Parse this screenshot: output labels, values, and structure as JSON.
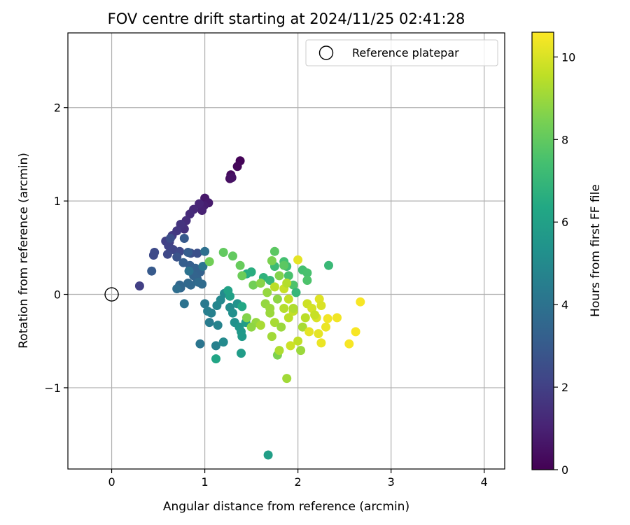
{
  "chart_data": {
    "type": "scatter",
    "title": "FOV centre drift starting at 2024/11/25 02:41:28",
    "xlabel": "Angular distance from reference (arcmin)",
    "ylabel": "Rotation from reference (arcmin)",
    "xlim": [
      -0.47,
      4.22
    ],
    "ylim": [
      -1.87,
      2.8
    ],
    "xticks": [
      0,
      1,
      2,
      3,
      4
    ],
    "xtick_labels": [
      "0",
      "1",
      "2",
      "3",
      "4"
    ],
    "yticks": [
      -1,
      0,
      1,
      2
    ],
    "ytick_labels": [
      "−1",
      "0",
      "1",
      "2"
    ],
    "grid": true,
    "legend": {
      "placement": "top-right",
      "entries": [
        "Reference platepar"
      ]
    },
    "reference_point": {
      "name": "Reference platepar",
      "x": 0,
      "y": 0
    },
    "colorbar": {
      "label": "Hours from first FF file",
      "colormap": "viridis",
      "range": [
        0,
        10.6
      ],
      "ticks": [
        0,
        2,
        4,
        6,
        8,
        10
      ],
      "tick_labels": [
        "0",
        "2",
        "4",
        "6",
        "8",
        "10"
      ]
    },
    "points": [
      {
        "x": 1.38,
        "y": 1.43,
        "t": 0.1
      },
      {
        "x": 1.35,
        "y": 1.37,
        "t": 0.2
      },
      {
        "x": 1.28,
        "y": 1.28,
        "t": 0.3
      },
      {
        "x": 1.27,
        "y": 1.24,
        "t": 0.4
      },
      {
        "x": 1.29,
        "y": 1.25,
        "t": 0.5
      },
      {
        "x": 1.0,
        "y": 1.03,
        "t": 0.7
      },
      {
        "x": 1.04,
        "y": 0.98,
        "t": 0.8
      },
      {
        "x": 0.99,
        "y": 0.95,
        "t": 0.9
      },
      {
        "x": 0.97,
        "y": 0.9,
        "t": 1.0
      },
      {
        "x": 0.94,
        "y": 0.97,
        "t": 1.1
      },
      {
        "x": 0.88,
        "y": 0.91,
        "t": 1.2
      },
      {
        "x": 0.84,
        "y": 0.86,
        "t": 1.3
      },
      {
        "x": 0.8,
        "y": 0.79,
        "t": 1.4
      },
      {
        "x": 0.78,
        "y": 0.7,
        "t": 1.5
      },
      {
        "x": 0.74,
        "y": 0.75,
        "t": 1.6
      },
      {
        "x": 0.7,
        "y": 0.68,
        "t": 1.7
      },
      {
        "x": 0.65,
        "y": 0.63,
        "t": 1.8
      },
      {
        "x": 0.62,
        "y": 0.56,
        "t": 1.9
      },
      {
        "x": 0.58,
        "y": 0.57,
        "t": 2.0
      },
      {
        "x": 0.61,
        "y": 0.52,
        "t": 2.1
      },
      {
        "x": 0.66,
        "y": 0.48,
        "t": 2.2
      },
      {
        "x": 0.6,
        "y": 0.43,
        "t": 2.3
      },
      {
        "x": 0.73,
        "y": 0.46,
        "t": 2.3
      },
      {
        "x": 0.46,
        "y": 0.45,
        "t": 2.4
      },
      {
        "x": 0.45,
        "y": 0.42,
        "t": 2.4
      },
      {
        "x": 0.63,
        "y": 0.6,
        "t": 2.5
      },
      {
        "x": 0.85,
        "y": 0.44,
        "t": 2.6
      },
      {
        "x": 0.92,
        "y": 0.44,
        "t": 2.6
      },
      {
        "x": 0.7,
        "y": 0.4,
        "t": 2.7
      },
      {
        "x": 0.3,
        "y": 0.09,
        "t": 2.0
      },
      {
        "x": 0.43,
        "y": 0.25,
        "t": 3.0
      },
      {
        "x": 0.78,
        "y": 0.6,
        "t": 3.0
      },
      {
        "x": 0.82,
        "y": 0.45,
        "t": 3.1
      },
      {
        "x": 0.77,
        "y": 0.34,
        "t": 3.2
      },
      {
        "x": 0.84,
        "y": 0.31,
        "t": 3.2
      },
      {
        "x": 0.9,
        "y": 0.28,
        "t": 3.3
      },
      {
        "x": 0.95,
        "y": 0.24,
        "t": 3.3
      },
      {
        "x": 0.92,
        "y": 0.16,
        "t": 3.4
      },
      {
        "x": 0.88,
        "y": 0.2,
        "t": 3.4
      },
      {
        "x": 0.73,
        "y": 0.1,
        "t": 3.5
      },
      {
        "x": 0.74,
        "y": 0.07,
        "t": 3.5
      },
      {
        "x": 0.82,
        "y": 0.12,
        "t": 3.6
      },
      {
        "x": 0.85,
        "y": 0.1,
        "t": 3.6
      },
      {
        "x": 0.93,
        "y": 0.13,
        "t": 3.7
      },
      {
        "x": 0.97,
        "y": 0.11,
        "t": 3.7
      },
      {
        "x": 0.7,
        "y": 0.06,
        "t": 3.8
      },
      {
        "x": 0.78,
        "y": -0.1,
        "t": 4.0
      },
      {
        "x": 1.0,
        "y": 0.46,
        "t": 3.9
      },
      {
        "x": 0.83,
        "y": 0.25,
        "t": 4.0
      },
      {
        "x": 0.98,
        "y": 0.3,
        "t": 4.1
      },
      {
        "x": 0.95,
        "y": -0.53,
        "t": 4.1
      },
      {
        "x": 1.0,
        "y": -0.1,
        "t": 4.3
      },
      {
        "x": 1.05,
        "y": -0.3,
        "t": 4.4
      },
      {
        "x": 1.03,
        "y": -0.18,
        "t": 4.5
      },
      {
        "x": 1.07,
        "y": -0.2,
        "t": 4.6
      },
      {
        "x": 1.12,
        "y": -0.55,
        "t": 4.6
      },
      {
        "x": 1.14,
        "y": -0.33,
        "t": 4.7
      },
      {
        "x": 1.13,
        "y": -0.12,
        "t": 4.8
      },
      {
        "x": 1.17,
        "y": -0.06,
        "t": 4.9
      },
      {
        "x": 1.21,
        "y": 0.01,
        "t": 5.0
      },
      {
        "x": 1.2,
        "y": -0.51,
        "t": 5.0
      },
      {
        "x": 1.27,
        "y": -0.14,
        "t": 5.1
      },
      {
        "x": 1.3,
        "y": -0.2,
        "t": 5.2
      },
      {
        "x": 1.32,
        "y": -0.3,
        "t": 5.3
      },
      {
        "x": 1.35,
        "y": -0.1,
        "t": 5.4
      },
      {
        "x": 1.37,
        "y": -0.35,
        "t": 5.5
      },
      {
        "x": 1.39,
        "y": -0.4,
        "t": 5.6
      },
      {
        "x": 1.4,
        "y": -0.45,
        "t": 5.7
      },
      {
        "x": 1.44,
        "y": -0.3,
        "t": 5.8
      },
      {
        "x": 1.39,
        "y": -0.63,
        "t": 5.8
      },
      {
        "x": 1.27,
        "y": -0.02,
        "t": 6.0
      },
      {
        "x": 1.25,
        "y": 0.04,
        "t": 6.1
      },
      {
        "x": 1.12,
        "y": -0.69,
        "t": 6.2
      },
      {
        "x": 1.4,
        "y": -0.13,
        "t": 6.3
      },
      {
        "x": 1.45,
        "y": 0.22,
        "t": 6.5
      },
      {
        "x": 1.5,
        "y": 0.24,
        "t": 6.6
      },
      {
        "x": 1.68,
        "y": -1.72,
        "t": 5.9
      },
      {
        "x": 1.63,
        "y": 0.18,
        "t": 6.8
      },
      {
        "x": 1.7,
        "y": 0.15,
        "t": 7.0
      },
      {
        "x": 1.75,
        "y": 0.3,
        "t": 7.2
      },
      {
        "x": 1.88,
        "y": 0.3,
        "t": 7.3
      },
      {
        "x": 1.85,
        "y": 0.35,
        "t": 7.4
      },
      {
        "x": 1.9,
        "y": 0.2,
        "t": 7.5
      },
      {
        "x": 1.95,
        "y": 0.1,
        "t": 7.6
      },
      {
        "x": 2.05,
        "y": 0.26,
        "t": 7.4
      },
      {
        "x": 2.1,
        "y": 0.23,
        "t": 7.5
      },
      {
        "x": 2.1,
        "y": 0.15,
        "t": 7.6
      },
      {
        "x": 2.33,
        "y": 0.31,
        "t": 7.1
      },
      {
        "x": 1.98,
        "y": 0.02,
        "t": 7.0
      },
      {
        "x": 1.75,
        "y": 0.46,
        "t": 7.9
      },
      {
        "x": 1.85,
        "y": 0.31,
        "t": 7.9
      },
      {
        "x": 1.2,
        "y": 0.45,
        "t": 8.0
      },
      {
        "x": 1.3,
        "y": 0.41,
        "t": 8.0
      },
      {
        "x": 1.38,
        "y": 0.31,
        "t": 8.1
      },
      {
        "x": 1.4,
        "y": 0.2,
        "t": 8.2
      },
      {
        "x": 1.52,
        "y": 0.1,
        "t": 8.3
      },
      {
        "x": 1.05,
        "y": 0.35,
        "t": 8.3
      },
      {
        "x": 1.72,
        "y": 0.36,
        "t": 8.5
      },
      {
        "x": 1.8,
        "y": 0.2,
        "t": 8.6
      },
      {
        "x": 1.78,
        "y": -0.65,
        "t": 8.5
      },
      {
        "x": 1.6,
        "y": 0.12,
        "t": 8.7
      },
      {
        "x": 1.65,
        "y": -0.1,
        "t": 8.9
      },
      {
        "x": 1.7,
        "y": -0.2,
        "t": 9.0
      },
      {
        "x": 1.72,
        "y": -0.45,
        "t": 9.1
      },
      {
        "x": 1.75,
        "y": -0.3,
        "t": 9.2
      },
      {
        "x": 1.8,
        "y": -0.6,
        "t": 9.3
      },
      {
        "x": 1.88,
        "y": -0.9,
        "t": 9.1
      },
      {
        "x": 1.85,
        "y": -0.15,
        "t": 9.4
      },
      {
        "x": 1.9,
        "y": -0.25,
        "t": 9.5
      },
      {
        "x": 1.95,
        "y": -0.18,
        "t": 9.6
      },
      {
        "x": 2.0,
        "y": -0.5,
        "t": 9.6
      },
      {
        "x": 2.05,
        "y": -0.35,
        "t": 9.2
      },
      {
        "x": 2.03,
        "y": -0.6,
        "t": 9.0
      },
      {
        "x": 1.92,
        "y": -0.55,
        "t": 9.8
      },
      {
        "x": 2.1,
        "y": -0.1,
        "t": 9.8
      },
      {
        "x": 2.15,
        "y": -0.15,
        "t": 9.9
      },
      {
        "x": 2.2,
        "y": -0.25,
        "t": 10.0
      },
      {
        "x": 2.23,
        "y": -0.05,
        "t": 10.1
      },
      {
        "x": 2.22,
        "y": -0.42,
        "t": 10.2
      },
      {
        "x": 2.25,
        "y": -0.52,
        "t": 10.3
      },
      {
        "x": 2.3,
        "y": -0.35,
        "t": 10.3
      },
      {
        "x": 2.32,
        "y": -0.26,
        "t": 10.4
      },
      {
        "x": 2.42,
        "y": -0.25,
        "t": 10.4
      },
      {
        "x": 2.55,
        "y": -0.53,
        "t": 10.5
      },
      {
        "x": 2.62,
        "y": -0.4,
        "t": 10.5
      },
      {
        "x": 2.67,
        "y": -0.08,
        "t": 10.5
      },
      {
        "x": 2.12,
        "y": -0.4,
        "t": 10.2
      },
      {
        "x": 2.0,
        "y": 0.37,
        "t": 10.2
      },
      {
        "x": 1.85,
        "y": 0.06,
        "t": 9.7
      },
      {
        "x": 1.9,
        "y": -0.05,
        "t": 9.6
      },
      {
        "x": 1.88,
        "y": 0.12,
        "t": 9.4
      },
      {
        "x": 1.75,
        "y": 0.08,
        "t": 9.5
      },
      {
        "x": 1.95,
        "y": -0.15,
        "t": 9.3
      },
      {
        "x": 1.7,
        "y": -0.15,
        "t": 9.0
      },
      {
        "x": 1.55,
        "y": -0.3,
        "t": 8.9
      },
      {
        "x": 1.6,
        "y": -0.33,
        "t": 9.2
      },
      {
        "x": 1.5,
        "y": -0.35,
        "t": 8.8
      },
      {
        "x": 1.45,
        "y": -0.25,
        "t": 8.6
      },
      {
        "x": 1.78,
        "y": -0.05,
        "t": 8.8
      },
      {
        "x": 1.82,
        "y": -0.35,
        "t": 9.0
      },
      {
        "x": 1.67,
        "y": 0.02,
        "t": 8.9
      },
      {
        "x": 2.18,
        "y": -0.22,
        "t": 9.7
      },
      {
        "x": 2.25,
        "y": -0.12,
        "t": 10.0
      },
      {
        "x": 2.08,
        "y": -0.25,
        "t": 9.5
      }
    ]
  }
}
